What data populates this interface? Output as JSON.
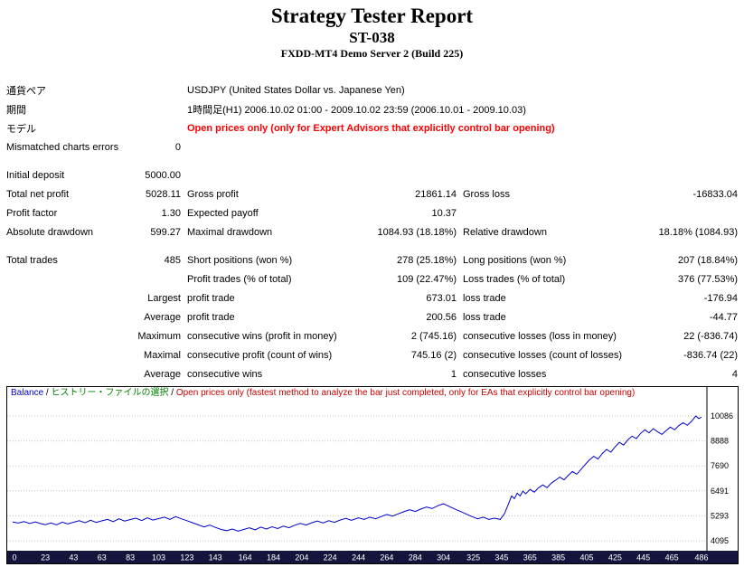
{
  "header": {
    "title": "Strategy Tester Report",
    "subtitle": "ST-038",
    "server": "FXDD-MT4 Demo Server 2 (Build 225)"
  },
  "report_rows": [
    {
      "cells": [
        {
          "t": "通貨ペア",
          "c": "label",
          "n": "symbol-label"
        },
        {
          "t": "",
          "c": "num"
        },
        {
          "t": "USDJPY (United States Dollar vs. Japanese Yen)",
          "c": "text",
          "span": 4,
          "n": "symbol-value"
        }
      ]
    },
    {
      "cells": [
        {
          "t": "期間",
          "c": "label",
          "n": "period-label"
        },
        {
          "t": "",
          "c": "num"
        },
        {
          "t": "1時間足(H1) 2006.10.02 01:00 - 2009.10.02 23:59 (2006.10.01 - 2009.10.03)",
          "c": "text",
          "span": 4,
          "n": "period-value"
        }
      ]
    },
    {
      "cells": [
        {
          "t": "モデル",
          "c": "label",
          "n": "model-label"
        },
        {
          "t": "",
          "c": "num"
        },
        {
          "t": "Open prices only (only for Expert Advisors that explicitly control bar opening)",
          "c": "model-red",
          "span": 4,
          "n": "model-value"
        }
      ]
    },
    {
      "cells": [
        {
          "t": "Mismatched charts errors",
          "c": "label"
        },
        {
          "t": "0",
          "c": "num"
        }
      ]
    },
    {
      "spacer": true
    },
    {
      "cells": [
        {
          "t": "Initial deposit",
          "c": "label"
        },
        {
          "t": "5000.00",
          "c": "num"
        }
      ]
    },
    {
      "cells": [
        {
          "t": "Total net profit",
          "c": "label"
        },
        {
          "t": "5028.11",
          "c": "num"
        },
        {
          "t": "Gross profit",
          "c": "label"
        },
        {
          "t": "21861.14",
          "c": "num"
        },
        {
          "t": "Gross loss",
          "c": "label"
        },
        {
          "t": "-16833.04",
          "c": "num"
        }
      ]
    },
    {
      "cells": [
        {
          "t": "Profit factor",
          "c": "label"
        },
        {
          "t": "1.30",
          "c": "num"
        },
        {
          "t": "Expected payoff",
          "c": "label"
        },
        {
          "t": "10.37",
          "c": "num"
        }
      ]
    },
    {
      "cells": [
        {
          "t": "Absolute drawdown",
          "c": "label"
        },
        {
          "t": "599.27",
          "c": "num"
        },
        {
          "t": "Maximal drawdown",
          "c": "label"
        },
        {
          "t": "1084.93 (18.18%)",
          "c": "num"
        },
        {
          "t": "Relative drawdown",
          "c": "label"
        },
        {
          "t": "18.18% (1084.93)",
          "c": "num"
        }
      ]
    },
    {
      "spacer": true
    },
    {
      "cells": [
        {
          "t": "Total trades",
          "c": "label"
        },
        {
          "t": "485",
          "c": "num"
        },
        {
          "t": "Short positions (won %)",
          "c": "label"
        },
        {
          "t": "278 (25.18%)",
          "c": "num"
        },
        {
          "t": "Long positions (won %)",
          "c": "label"
        },
        {
          "t": "207 (18.84%)",
          "c": "num"
        }
      ]
    },
    {
      "cells": [
        {
          "t": "",
          "c": "label"
        },
        {
          "t": "",
          "c": "num"
        },
        {
          "t": "Profit trades (% of total)",
          "c": "label"
        },
        {
          "t": "109 (22.47%)",
          "c": "num"
        },
        {
          "t": "Loss trades (% of total)",
          "c": "label"
        },
        {
          "t": "376 (77.53%)",
          "c": "num"
        }
      ]
    },
    {
      "cells": [
        {
          "t": "",
          "c": "label"
        },
        {
          "t": "Largest",
          "c": "num"
        },
        {
          "t": "profit trade",
          "c": "label"
        },
        {
          "t": "673.01",
          "c": "num"
        },
        {
          "t": "loss trade",
          "c": "label"
        },
        {
          "t": "-176.94",
          "c": "num"
        }
      ]
    },
    {
      "cells": [
        {
          "t": "",
          "c": "label"
        },
        {
          "t": "Average",
          "c": "num"
        },
        {
          "t": "profit trade",
          "c": "label"
        },
        {
          "t": "200.56",
          "c": "num"
        },
        {
          "t": "loss trade",
          "c": "label"
        },
        {
          "t": "-44.77",
          "c": "num"
        }
      ]
    },
    {
      "cells": [
        {
          "t": "",
          "c": "label"
        },
        {
          "t": "Maximum",
          "c": "num"
        },
        {
          "t": "consecutive wins (profit in money)",
          "c": "label"
        },
        {
          "t": "2 (745.16)",
          "c": "num"
        },
        {
          "t": "consecutive losses (loss in money)",
          "c": "label"
        },
        {
          "t": "22 (-836.74)",
          "c": "num"
        }
      ]
    },
    {
      "cells": [
        {
          "t": "",
          "c": "label"
        },
        {
          "t": "Maximal",
          "c": "num"
        },
        {
          "t": "consecutive profit (count of wins)",
          "c": "label"
        },
        {
          "t": "745.16 (2)",
          "c": "num"
        },
        {
          "t": "consecutive losses (count of losses)",
          "c": "label"
        },
        {
          "t": "-836.74 (22)",
          "c": "num"
        }
      ]
    },
    {
      "cells": [
        {
          "t": "",
          "c": "label"
        },
        {
          "t": "Average",
          "c": "num"
        },
        {
          "t": "consecutive wins",
          "c": "label"
        },
        {
          "t": "1",
          "c": "num"
        },
        {
          "t": "consecutive losses",
          "c": "label"
        },
        {
          "t": "4",
          "c": "num"
        }
      ]
    }
  ],
  "chart_data": {
    "type": "line",
    "title": "Balance",
    "xlabel": "",
    "ylabel": "",
    "x_range": [
      0,
      486
    ],
    "y_range": [
      3618,
      11475
    ],
    "grid": true,
    "grid_color": "#c6c6c6",
    "axis_strip_color": "#14143c",
    "y_ticks": [
      10086,
      8888,
      7690,
      6491,
      5293,
      4095
    ],
    "x_ticks": [
      0,
      23,
      43,
      63,
      83,
      103,
      123,
      143,
      164,
      184,
      204,
      224,
      244,
      264,
      284,
      304,
      325,
      345,
      365,
      385,
      405,
      425,
      445,
      465,
      486
    ],
    "legend": [
      {
        "text": "Balance",
        "color": "#0000cc"
      },
      {
        "text": " / ",
        "color": "#000000"
      },
      {
        "text": "ヒストリー・ファイルの選択",
        "color": "#008000"
      },
      {
        "text": " / ",
        "color": "#000000"
      },
      {
        "text": "Open prices only (fastest method to analyze the bar just completed, only for EAs that explicitly control bar opening)",
        "color": "#cc0000"
      }
    ],
    "series": [
      {
        "name": "Balance",
        "color": "#0000cc",
        "points": [
          [
            0,
            5000
          ],
          [
            4,
            4945
          ],
          [
            8,
            5015
          ],
          [
            12,
            4930
          ],
          [
            16,
            5000
          ],
          [
            20,
            4915
          ],
          [
            23,
            4870
          ],
          [
            27,
            4950
          ],
          [
            31,
            4865
          ],
          [
            35,
            4990
          ],
          [
            39,
            4905
          ],
          [
            43,
            4985
          ],
          [
            47,
            5060
          ],
          [
            51,
            4960
          ],
          [
            55,
            5080
          ],
          [
            59,
            4975
          ],
          [
            63,
            5055
          ],
          [
            67,
            5120
          ],
          [
            71,
            5015
          ],
          [
            75,
            5150
          ],
          [
            79,
            5040
          ],
          [
            83,
            5115
          ],
          [
            87,
            5180
          ],
          [
            91,
            5070
          ],
          [
            95,
            5195
          ],
          [
            99,
            5090
          ],
          [
            103,
            5160
          ],
          [
            107,
            5230
          ],
          [
            111,
            5125
          ],
          [
            115,
            5255
          ],
          [
            119,
            5150
          ],
          [
            123,
            5060
          ],
          [
            127,
            4960
          ],
          [
            131,
            4860
          ],
          [
            135,
            4760
          ],
          [
            139,
            4850
          ],
          [
            143,
            4740
          ],
          [
            147,
            4640
          ],
          [
            151,
            4580
          ],
          [
            155,
            4660
          ],
          [
            159,
            4560
          ],
          [
            163,
            4640
          ],
          [
            167,
            4720
          ],
          [
            171,
            4620
          ],
          [
            175,
            4750
          ],
          [
            179,
            4660
          ],
          [
            183,
            4770
          ],
          [
            187,
            4680
          ],
          [
            191,
            4800
          ],
          [
            195,
            4720
          ],
          [
            199,
            4840
          ],
          [
            203,
            4930
          ],
          [
            207,
            4850
          ],
          [
            211,
            4960
          ],
          [
            215,
            5040
          ],
          [
            219,
            4950
          ],
          [
            223,
            5060
          ],
          [
            227,
            4980
          ],
          [
            231,
            5090
          ],
          [
            235,
            5170
          ],
          [
            239,
            5080
          ],
          [
            244,
            5200
          ],
          [
            248,
            5120
          ],
          [
            252,
            5230
          ],
          [
            256,
            5150
          ],
          [
            260,
            5260
          ],
          [
            264,
            5360
          ],
          [
            268,
            5280
          ],
          [
            272,
            5390
          ],
          [
            276,
            5490
          ],
          [
            280,
            5590
          ],
          [
            284,
            5500
          ],
          [
            288,
            5620
          ],
          [
            292,
            5720
          ],
          [
            296,
            5640
          ],
          [
            300,
            5780
          ],
          [
            304,
            5870
          ],
          [
            308,
            5740
          ],
          [
            312,
            5620
          ],
          [
            316,
            5500
          ],
          [
            320,
            5380
          ],
          [
            324,
            5260
          ],
          [
            328,
            5150
          ],
          [
            332,
            5230
          ],
          [
            336,
            5120
          ],
          [
            340,
            5180
          ],
          [
            344,
            5120
          ],
          [
            347,
            5400
          ],
          [
            350,
            5900
          ],
          [
            352,
            6250
          ],
          [
            354,
            6120
          ],
          [
            356,
            6380
          ],
          [
            358,
            6250
          ],
          [
            360,
            6480
          ],
          [
            362,
            6350
          ],
          [
            365,
            6560
          ],
          [
            368,
            6430
          ],
          [
            371,
            6640
          ],
          [
            374,
            6780
          ],
          [
            377,
            6650
          ],
          [
            380,
            6860
          ],
          [
            383,
            7000
          ],
          [
            386,
            7150
          ],
          [
            389,
            7020
          ],
          [
            392,
            7240
          ],
          [
            395,
            7420
          ],
          [
            398,
            7290
          ],
          [
            401,
            7520
          ],
          [
            404,
            7760
          ],
          [
            407,
            7980
          ],
          [
            410,
            8150
          ],
          [
            413,
            8020
          ],
          [
            416,
            8280
          ],
          [
            419,
            8480
          ],
          [
            422,
            8350
          ],
          [
            425,
            8600
          ],
          [
            428,
            8820
          ],
          [
            431,
            8690
          ],
          [
            434,
            8940
          ],
          [
            437,
            9120
          ],
          [
            440,
            9000
          ],
          [
            443,
            9250
          ],
          [
            446,
            9420
          ],
          [
            449,
            9280
          ],
          [
            452,
            9480
          ],
          [
            455,
            9330
          ],
          [
            458,
            9200
          ],
          [
            461,
            9380
          ],
          [
            464,
            9550
          ],
          [
            467,
            9420
          ],
          [
            470,
            9620
          ],
          [
            473,
            9760
          ],
          [
            476,
            9640
          ],
          [
            479,
            9830
          ],
          [
            482,
            10086
          ],
          [
            484,
            9960
          ],
          [
            486,
            10028
          ]
        ]
      }
    ]
  }
}
